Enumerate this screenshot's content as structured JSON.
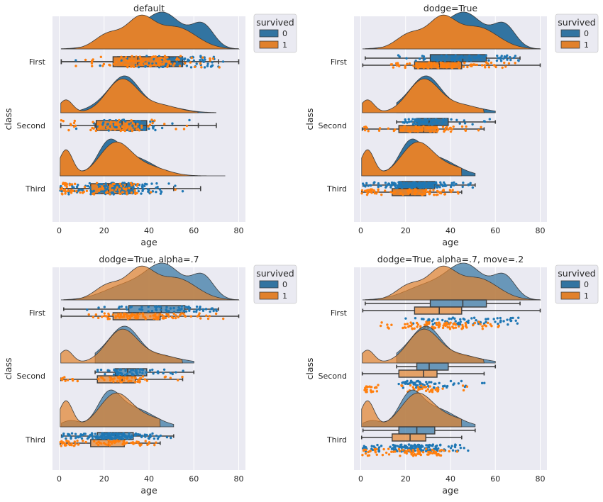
{
  "colors": {
    "axes_bg": "#EAEAF2",
    "grid": "#FFFFFF",
    "survived_0": "#1F77B4",
    "survived_1": "#FF7F0E",
    "box_0": "#3274A1",
    "box_1": "#E1812C",
    "line": "#3D3D3D"
  },
  "legend": {
    "title": "survived",
    "labels": [
      "0",
      "1"
    ]
  },
  "chart_data": [
    {
      "type": "raincloud",
      "title": "default",
      "xlabel": "age",
      "ylabel": "class",
      "xlim": [
        -3,
        83
      ],
      "xticks": [
        0,
        20,
        40,
        60,
        80
      ],
      "categories": [
        "First",
        "Second",
        "Third"
      ],
      "options": {
        "dodge": false,
        "alpha": 1.0,
        "move": 0
      },
      "grid": true,
      "legend_position": "outside-upper-right",
      "series": [
        {
          "name": "0",
          "box": [
            [
              0.9,
              26,
              45.5,
              55,
              71
            ],
            [
              16,
              25,
              30.5,
              39,
              70
            ],
            [
              1,
              17,
              25,
              33,
              51
            ]
          ],
          "range": [
            [
              0.9,
              80
            ],
            [
              0.7,
              70
            ],
            [
              0.4,
              74
            ]
          ]
        },
        {
          "name": "1",
          "box": [
            [
              0.9,
              24,
              35,
              49,
              80
            ],
            [
              0.7,
              16.5,
              28,
              34,
              62
            ],
            [
              0.4,
              14,
              22,
              30,
              63
            ]
          ],
          "range": [
            [
              0.9,
              80
            ],
            [
              0.7,
              62
            ],
            [
              0.4,
              63
            ]
          ]
        }
      ]
    },
    {
      "type": "raincloud",
      "title": "dodge=True",
      "xlabel": "age",
      "ylabel": "class",
      "xlim": [
        -3,
        83
      ],
      "xticks": [
        0,
        20,
        40,
        60,
        80
      ],
      "categories": [
        "First",
        "Second",
        "Third"
      ],
      "options": {
        "dodge": true,
        "alpha": 1.0,
        "move": 0
      },
      "grid": true,
      "legend_position": "outside-upper-right",
      "series": [
        {
          "name": "0",
          "box": [
            [
              2,
              31,
              45.5,
              56,
              71
            ],
            [
              16,
              25,
              30.5,
              39,
              60
            ],
            [
              1,
              17,
              25,
              33,
              51
            ]
          ]
        },
        {
          "name": "1",
          "box": [
            [
              0.9,
              24,
              35,
              45,
              80
            ],
            [
              0.7,
              17,
              28,
              34,
              55
            ],
            [
              0.4,
              14,
              22,
              29,
              45
            ]
          ]
        }
      ]
    },
    {
      "type": "raincloud",
      "title": "dodge=True, alpha=.7",
      "xlabel": "age",
      "ylabel": "class",
      "xlim": [
        -3,
        83
      ],
      "xticks": [
        0,
        20,
        40,
        60,
        80
      ],
      "categories": [
        "First",
        "Second",
        "Third"
      ],
      "options": {
        "dodge": true,
        "alpha": 0.7,
        "move": 0
      },
      "grid": true,
      "legend_position": "outside-upper-right",
      "series": [
        {
          "name": "0",
          "box": [
            [
              2,
              31,
              45.5,
              56,
              71
            ],
            [
              16,
              25,
              30.5,
              39,
              60
            ],
            [
              1,
              17,
              25,
              33,
              51
            ]
          ]
        },
        {
          "name": "1",
          "box": [
            [
              0.9,
              24,
              35,
              45,
              80
            ],
            [
              0.7,
              17,
              28,
              34,
              55
            ],
            [
              0.4,
              14,
              22,
              29,
              45
            ]
          ]
        }
      ]
    },
    {
      "type": "raincloud",
      "title": "dodge=True, alpha=.7, move=.2",
      "xlabel": "age",
      "ylabel": "class",
      "xlim": [
        -3,
        83
      ],
      "xticks": [
        0,
        20,
        40,
        60,
        80
      ],
      "categories": [
        "First",
        "Second",
        "Third"
      ],
      "options": {
        "dodge": true,
        "alpha": 0.7,
        "move": 0.2
      },
      "grid": true,
      "legend_position": "outside-upper-right",
      "series": [
        {
          "name": "0",
          "box": [
            [
              2,
              31,
              45.5,
              56,
              71
            ],
            [
              16,
              25,
              30.5,
              39,
              60
            ],
            [
              1,
              17,
              25,
              33,
              51
            ]
          ]
        },
        {
          "name": "1",
          "box": [
            [
              0.9,
              24,
              35,
              45,
              80
            ],
            [
              0.7,
              17,
              28,
              34,
              55
            ],
            [
              0.4,
              14,
              22,
              29,
              45
            ]
          ]
        }
      ]
    }
  ]
}
